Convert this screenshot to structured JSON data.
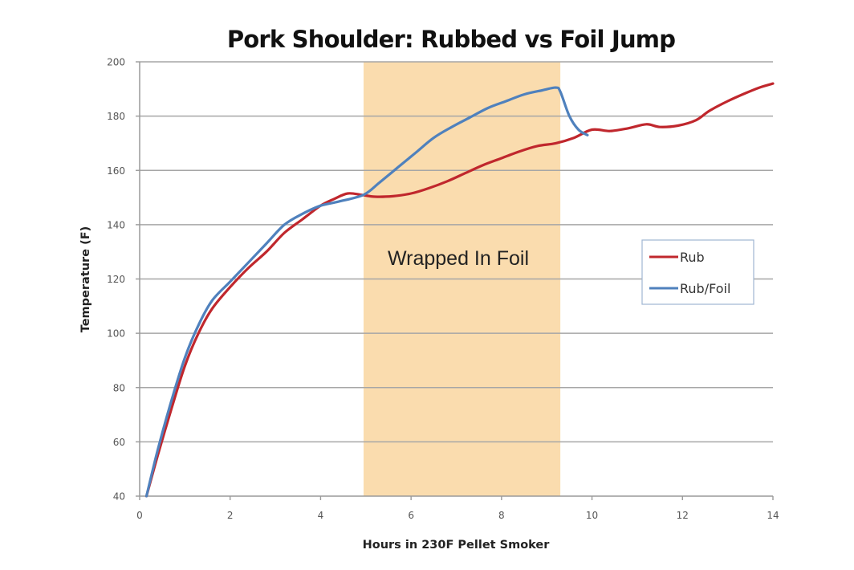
{
  "chart_data": {
    "type": "line",
    "title": "Pork Shoulder: Rubbed vs Foil Jump",
    "xlabel": "Hours in 230F Pellet Smoker",
    "ylabel": "Temperature (F)",
    "xlim": [
      0,
      14
    ],
    "ylim": [
      40,
      200
    ],
    "x_ticks": [
      0,
      2,
      4,
      6,
      8,
      10,
      12,
      14
    ],
    "y_ticks": [
      40,
      60,
      80,
      100,
      120,
      140,
      160,
      180,
      200
    ],
    "grid": "horizontal",
    "legend_position": "right, inside plot",
    "annotations": [
      {
        "type": "shaded_region",
        "x_start": 4.95,
        "x_end": 9.3,
        "label": "Wrapped In Foil",
        "color": "#fadcae"
      }
    ],
    "series": [
      {
        "name": "Rub",
        "color": "#c0272d",
        "points": [
          [
            0.15,
            40
          ],
          [
            0.4,
            55
          ],
          [
            0.7,
            72
          ],
          [
            1.0,
            88
          ],
          [
            1.3,
            100
          ],
          [
            1.6,
            109
          ],
          [
            2.0,
            117
          ],
          [
            2.4,
            124
          ],
          [
            2.8,
            130
          ],
          [
            3.2,
            137
          ],
          [
            3.6,
            142
          ],
          [
            4.0,
            147
          ],
          [
            4.3,
            149.5
          ],
          [
            4.6,
            151.5
          ],
          [
            4.9,
            151
          ],
          [
            5.2,
            150.3
          ],
          [
            5.6,
            150.5
          ],
          [
            6.0,
            151.5
          ],
          [
            6.4,
            153.5
          ],
          [
            6.8,
            156
          ],
          [
            7.2,
            159
          ],
          [
            7.6,
            162
          ],
          [
            8.0,
            164.5
          ],
          [
            8.4,
            167
          ],
          [
            8.8,
            169
          ],
          [
            9.2,
            170
          ],
          [
            9.6,
            172
          ],
          [
            10.0,
            175
          ],
          [
            10.4,
            174.5
          ],
          [
            10.8,
            175.5
          ],
          [
            11.2,
            177
          ],
          [
            11.5,
            176
          ],
          [
            11.9,
            176.5
          ],
          [
            12.3,
            178.5
          ],
          [
            12.6,
            182
          ],
          [
            13.0,
            185.5
          ],
          [
            13.4,
            188.5
          ],
          [
            13.7,
            190.5
          ],
          [
            14.0,
            192
          ]
        ]
      },
      {
        "name": "Rub/Foil",
        "color": "#4f81bd",
        "points": [
          [
            0.15,
            40
          ],
          [
            0.4,
            57
          ],
          [
            0.7,
            75
          ],
          [
            1.0,
            91
          ],
          [
            1.3,
            103
          ],
          [
            1.6,
            112
          ],
          [
            2.0,
            119
          ],
          [
            2.4,
            126
          ],
          [
            2.8,
            133
          ],
          [
            3.2,
            140
          ],
          [
            3.6,
            144
          ],
          [
            4.0,
            147
          ],
          [
            4.4,
            148.5
          ],
          [
            4.95,
            151
          ],
          [
            5.3,
            155.5
          ],
          [
            5.7,
            161
          ],
          [
            6.1,
            166.5
          ],
          [
            6.5,
            172
          ],
          [
            6.9,
            176
          ],
          [
            7.3,
            179.5
          ],
          [
            7.7,
            183
          ],
          [
            8.1,
            185.5
          ],
          [
            8.5,
            188
          ],
          [
            8.9,
            189.5
          ],
          [
            9.2,
            190.5
          ],
          [
            9.3,
            189
          ],
          [
            9.5,
            180
          ],
          [
            9.7,
            175
          ],
          [
            9.9,
            173
          ]
        ]
      }
    ]
  }
}
